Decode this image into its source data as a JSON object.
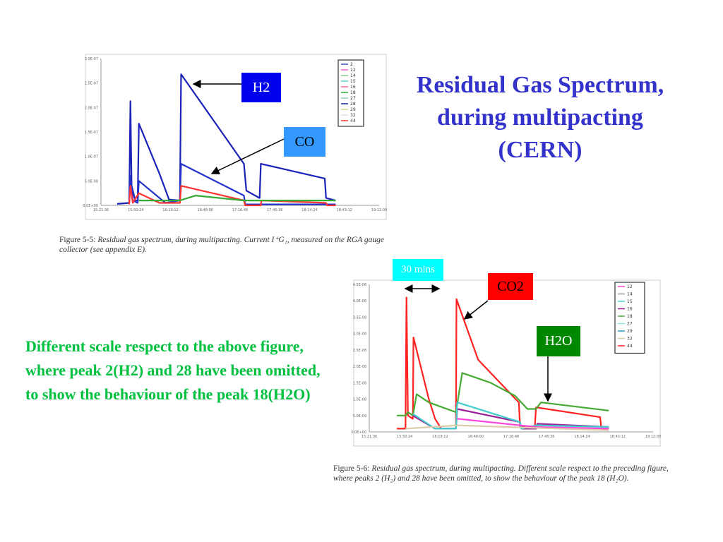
{
  "title": [
    "Residual Gas Spectrum,",
    "during multipacting",
    "(CERN)"
  ],
  "note": "Different scale respect to the above figure, where peak 2(H2) and 28 have been omitted, to show the behaviour of the peak 18(H2O)",
  "annotations": {
    "h2": {
      "label": "H2",
      "color": "#0000ee"
    },
    "co": {
      "label": "CO",
      "color": "#3399ff"
    },
    "thirty": {
      "label": "30 mins",
      "color": "#00ffff"
    },
    "co2": {
      "label": "CO2",
      "color": "#ff0000"
    },
    "h2o": {
      "label": "H2O",
      "color": "#008800"
    }
  },
  "captions": {
    "fig55_label": "Figure 5-5:",
    "fig55_text": "Residual gas spectrum, during multipacting. Current I⁺G₁, measured on the RGA gauge collector (see appendix E).",
    "fig56_label": "Figure 5-6:",
    "fig56_text": "Residual gas spectrum, during multipacting. Different scale respect to the preceding figure, where peaks 2 (H₂) and 28 have been omitted, to show the behaviour of the peak 18 (H₂O)."
  },
  "chart_data": [
    {
      "type": "line",
      "ylim": [
        0,
        3e-07
      ],
      "yticks": [
        "0.0E+00",
        "5.0E-08",
        "1.0E-07",
        "1.5E-07",
        "2.0E-07",
        "2.5E-07",
        "3.0E-07"
      ],
      "xticks": [
        "15:21:36",
        "15:50:24",
        "16:19:12",
        "16:48:00",
        "17:16:48",
        "17:45:36",
        "18:14:24",
        "18:43:12",
        "19:12:00"
      ],
      "legend": [
        "2",
        "12",
        "14",
        "15",
        "16",
        "18",
        "27",
        "28",
        "29",
        "32",
        "44"
      ],
      "legend_colors": [
        "#3344cc",
        "#ff66cc",
        "#88cc88",
        "#66cccc",
        "#ff6699",
        "#33aa33",
        "#99cccc",
        "#1122aa",
        "#ccdd88",
        "#dddddd",
        "#ff3333"
      ],
      "legend_position": "top-right",
      "series": [
        {
          "name": "2",
          "color": "#1a22b8",
          "x": [
            "15:35:00",
            "15:45:00",
            "15:46:00",
            "15:47:00",
            "15:50:00",
            "15:52:00",
            "15:53:00",
            "16:10:00",
            "16:18:00",
            "16:27:00",
            "16:28:00",
            "17:20:00",
            "17:22:00",
            "17:33:00",
            "17:34:00",
            "18:27:00",
            "18:28:00",
            "18:36:00"
          ],
          "y": [
            3e-09,
            5e-09,
            2.13e-07,
            4e-08,
            1e-08,
            1e-08,
            1.67e-07,
            6.5e-08,
            1.2e-08,
            1e-08,
            2.68e-07,
            8.5e-08,
            3e-08,
            1.5e-08,
            8.5e-08,
            5.5e-08,
            1.5e-08,
            1e-08
          ]
        },
        {
          "name": "28",
          "color": "#2233cc",
          "x": [
            "15:45:00",
            "15:46:00",
            "15:48:00",
            "15:52:00",
            "15:53:00",
            "16:15:00",
            "16:27:00",
            "16:28:00",
            "17:20:00",
            "17:21:00",
            "18:36:00"
          ],
          "y": [
            5e-09,
            6e-08,
            1e-08,
            5e-09,
            5e-08,
            5e-09,
            1e-08,
            8.5e-08,
            2e-08,
            2e-09,
            2e-09
          ]
        },
        {
          "name": "44",
          "color": "#ff3333",
          "x": [
            "15:45:00",
            "15:46:00",
            "15:48:00",
            "15:53:00",
            "16:10:00",
            "16:27:00",
            "16:28:00",
            "17:20:00",
            "17:21:00",
            "17:34:00",
            "17:34:30",
            "18:28:00",
            "18:29:00",
            "18:36:00"
          ],
          "y": [
            2e-09,
            4e-08,
            5e-09,
            2.5e-08,
            5e-09,
            5e-09,
            4e-08,
            1e-08,
            0,
            0,
            1e-08,
            5e-09,
            0,
            0
          ]
        },
        {
          "name": "18",
          "color": "#33aa33",
          "x": [
            "15:53:00",
            "16:27:00",
            "16:40:00",
            "17:20:00",
            "18:36:00"
          ],
          "y": [
            1e-08,
            1e-08,
            2e-08,
            1e-08,
            1e-08
          ]
        }
      ]
    },
    {
      "type": "line",
      "ylim": [
        0,
        4.5e-08
      ],
      "yticks": [
        "0.0E+00",
        "5.0E-09",
        "1.0E-08",
        "1.5E-08",
        "2.0E-08",
        "2.5E-08",
        "3.0E-08",
        "3.5E-08",
        "4.0E-08",
        "4.5E-08"
      ],
      "xticks": [
        "15:21:36",
        "15:50:24",
        "16:19:12",
        "16:48:00",
        "17:16:48",
        "17:45:36",
        "18:14:24",
        "18:43:12",
        "19:12:00"
      ],
      "legend": [
        "12",
        "14",
        "15",
        "16",
        "18",
        "27",
        "29",
        "32",
        "44"
      ],
      "legend_colors": [
        "#ff44dd",
        "#999999",
        "#44cccc",
        "#992299",
        "#44aa33",
        "#88dddd",
        "#3399bb",
        "#ddccaa",
        "#ff2222"
      ],
      "legend_position": "top-right",
      "series": [
        {
          "name": "44",
          "color": "#ff2222",
          "x": [
            "15:44:00",
            "15:51:00",
            "15:51:48",
            "15:53:00",
            "15:57:00",
            "15:57:30",
            "16:10:00",
            "16:15:00",
            "16:20:00",
            "16:32:00",
            "16:32:24",
            "16:50:00",
            "17:23:00",
            "17:24:00",
            "17:36:00",
            "17:37:00",
            "18:29:00",
            "18:30:00",
            "18:36:00"
          ],
          "y": [
            1e-09,
            1e-09,
            4.1e-08,
            5e-09,
            4e-09,
            2.88e-08,
            1e-08,
            4e-09,
            1e-09,
            1e-09,
            4.05e-08,
            2.2e-08,
            9e-09,
            1.5e-09,
            1.5e-09,
            7.5e-09,
            4.5e-09,
            1e-09,
            1e-09
          ]
        },
        {
          "name": "18",
          "color": "#44aa33",
          "x": [
            "15:44:00",
            "15:51:00",
            "15:53:00",
            "15:57:00",
            "16:00:00",
            "16:10:00",
            "16:32:00",
            "16:37:00",
            "17:00:00",
            "17:20:00",
            "17:30:00",
            "17:37:00",
            "17:41:00",
            "18:36:00"
          ],
          "y": [
            5e-09,
            5e-09,
            6e-09,
            5e-09,
            1.15e-08,
            9e-09,
            6e-09,
            1.8e-08,
            1.5e-08,
            1.1e-08,
            7e-09,
            7e-09,
            9e-09,
            6.5e-09
          ]
        },
        {
          "name": "16",
          "color": "#992299",
          "x": [
            "15:57:00",
            "15:59:00",
            "16:15:00",
            "16:32:00",
            "16:33:00",
            "17:24:00",
            "17:25:00",
            "17:37:00",
            "17:38:00",
            "18:36:00"
          ],
          "y": [
            5e-09,
            4.5e-09,
            1e-09,
            1e-09,
            7e-09,
            3e-09,
            1e-09,
            1e-09,
            2.5e-09,
            1.5e-09
          ]
        },
        {
          "name": "15",
          "color": "#44cccc",
          "x": [
            "15:57:00",
            "16:15:00",
            "16:32:00",
            "16:33:00",
            "17:24:00",
            "17:25:00",
            "17:37:00",
            "18:36:00"
          ],
          "y": [
            5.5e-09,
            1e-09,
            1e-09,
            9e-09,
            3e-09,
            1e-09,
            2e-09,
            1.5e-09
          ]
        },
        {
          "name": "12",
          "color": "#ff44dd",
          "x": [
            "16:33:00",
            "17:24:00",
            "17:37:00",
            "18:36:00"
          ],
          "y": [
            4e-09,
            2e-09,
            1.5e-09,
            1e-09
          ]
        },
        {
          "name": "32",
          "color": "#ddccaa",
          "x": [
            "15:51:00",
            "16:33:00",
            "18:36:00"
          ],
          "y": [
            1e-09,
            2e-09,
            5e-10
          ]
        }
      ]
    }
  ]
}
